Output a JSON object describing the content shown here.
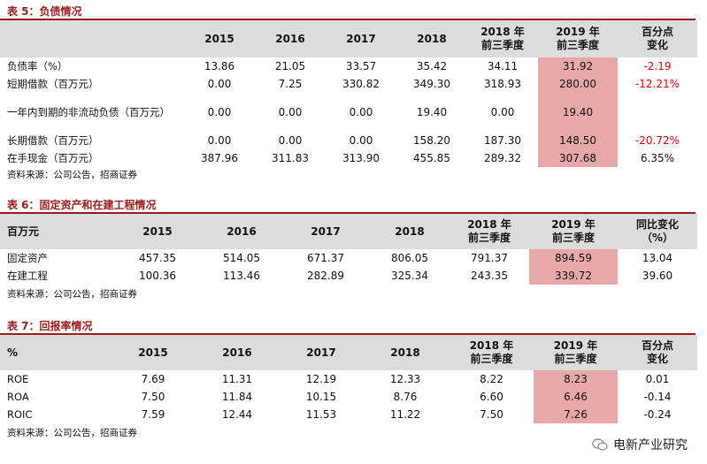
{
  "table5": {
    "title": "表 5：负债情况",
    "headers": [
      "",
      "2015",
      "2016",
      "2017",
      "2018",
      "2018 年\n前三季度",
      "2019 年\n前三季度",
      "百分点\n变化"
    ],
    "rows": [
      {
        "label": "负债率（%）",
        "values": [
          "13.86",
          "21.05",
          "33.57",
          "35.42",
          "34.11",
          "31.92",
          "-2.19"
        ]
      },
      {
        "label": "短期借款（百万元）",
        "values": [
          "0.00",
          "7.25",
          "330.82",
          "349.30",
          "318.93",
          "280.00",
          "-12.21%"
        ]
      },
      {
        "label": "一年内到期的非流动负债（百万元）",
        "values": [
          "0.00",
          "0.00",
          "0.00",
          "19.40",
          "0.00",
          "19.40",
          ""
        ]
      },
      {
        "label": "长期借款（百万元）",
        "values": [
          "0.00",
          "0.00",
          "0.00",
          "158.20",
          "187.30",
          "148.50",
          "-20.72%"
        ]
      },
      {
        "label": "在手现金（百万元）",
        "values": [
          "387.96",
          "311.83",
          "313.90",
          "455.85",
          "289.32",
          "307.68",
          "6.35%"
        ]
      }
    ],
    "source": "资料来源：公司公告，招商证券"
  },
  "table6": {
    "title": "表 6：固定资产和在建工程情况",
    "headers": [
      "百万元",
      "2015",
      "2016",
      "2017",
      "2018",
      "2018 年\n前三季度",
      "2019 年\n前三季度",
      "同比变化\n（%）"
    ],
    "rows": [
      {
        "label": "固定资产",
        "values": [
          "457.35",
          "514.05",
          "671.37",
          "806.05",
          "791.37",
          "894.59",
          "13.04"
        ]
      },
      {
        "label": "在建工程",
        "values": [
          "100.36",
          "113.46",
          "282.89",
          "325.34",
          "243.35",
          "339.72",
          "39.60"
        ]
      }
    ],
    "source": "资料来源：公司公告，招商证券"
  },
  "table7": {
    "title": "表 7：回报率情况",
    "headers": [
      "%",
      "2015",
      "2016",
      "2017",
      "2018",
      "2018 年\n前三季度",
      "2019 年\n前三季度",
      "百分点\n变化"
    ],
    "rows": [
      {
        "label": "ROE",
        "values": [
          "7.69",
          "11.31",
          "12.19",
          "12.33",
          "8.22",
          "8.23",
          "0.01"
        ]
      },
      {
        "label": "ROA",
        "values": [
          "7.50",
          "11.84",
          "10.15",
          "8.76",
          "6.60",
          "6.46",
          "-0.14"
        ]
      },
      {
        "label": "ROIC",
        "values": [
          "7.59",
          "12.44",
          "11.53",
          "11.22",
          "7.50",
          "7.26",
          "-0.24"
        ]
      }
    ],
    "source": "资料来源：公司公告，招商证券"
  },
  "watermark": {
    "text": "电新产业研究",
    "icon": "wechat-icon"
  },
  "colors": {
    "title": "#9b1c1c",
    "highlight": "#e8a8a8",
    "header_bg": "#dcdcdc",
    "negative": "#e00000"
  }
}
